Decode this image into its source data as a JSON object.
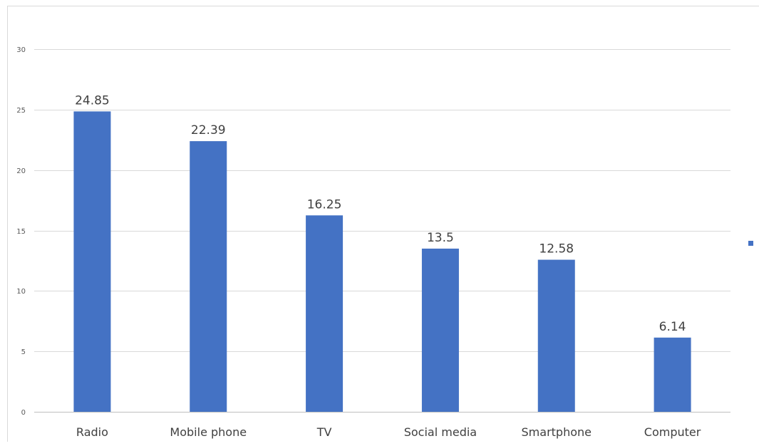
{
  "chart_data": {
    "type": "bar",
    "categories": [
      "Radio",
      "Mobile phone",
      "TV",
      "Social media",
      "Smartphone",
      "Computer"
    ],
    "series": [
      {
        "values": [
          24.85,
          22.39,
          16.25,
          13.5,
          12.58,
          6.14
        ],
        "color": "#4472c4"
      }
    ],
    "data_labels": [
      "24.85",
      "22.39",
      "16.25",
      "13.5",
      "12.58",
      "6.14"
    ],
    "y_ticks": [
      0,
      5,
      10,
      15,
      20,
      25,
      30
    ],
    "ylim": [
      0,
      30
    ],
    "grid": true,
    "legend": "right"
  }
}
